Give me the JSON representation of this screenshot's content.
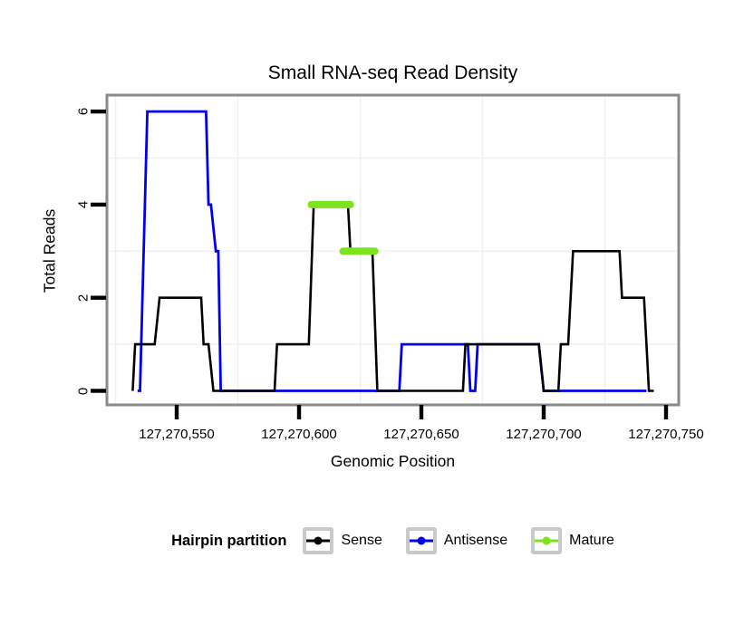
{
  "title": "Small RNA-seq Read Density",
  "x_axis": {
    "label": "Genomic Position",
    "ticks": [
      {
        "value": 127270550,
        "label": "127,270,550"
      },
      {
        "value": 127270600,
        "label": "127,270,600"
      },
      {
        "value": 127270650,
        "label": "127,270,650"
      },
      {
        "value": 127270700,
        "label": "127,270,700"
      },
      {
        "value": 127270750,
        "label": "127,270,750"
      }
    ]
  },
  "y_axis": {
    "label": "Total Reads",
    "ticks": [
      {
        "value": 0,
        "label": "0"
      },
      {
        "value": 2,
        "label": "2"
      },
      {
        "value": 4,
        "label": "4"
      },
      {
        "value": 6,
        "label": "6"
      }
    ]
  },
  "legend": {
    "title": "Hairpin partition",
    "items": [
      {
        "label": "Sense",
        "color": "#000000"
      },
      {
        "label": "Antisense",
        "color": "#0000EE"
      },
      {
        "label": "Mature",
        "color": "#7CE31C"
      }
    ]
  },
  "colors": {
    "panel_border": "#8A8A8A",
    "gridline": "#F0F0F0",
    "tick": "#000000",
    "background": "#FFFFFF"
  },
  "chart_data": {
    "type": "line",
    "title": "Small RNA-seq Read Density",
    "xlabel": "Genomic Position",
    "ylabel": "Total Reads",
    "x_range": [
      127270522,
      127270756
    ],
    "y_range": [
      0,
      6.4
    ],
    "grid": {
      "x_minor": [
        127270525,
        127270575,
        127270625,
        127270675,
        127270725
      ],
      "y_minor": [
        1,
        3,
        5
      ]
    },
    "series": [
      {
        "name": "Antisense",
        "color": "#0000EE",
        "stroke_width": 2.8,
        "points": [
          [
            127270534,
            0
          ],
          [
            127270535,
            0
          ],
          [
            127270538,
            6
          ],
          [
            127270562,
            6
          ],
          [
            127270563,
            4
          ],
          [
            127270564,
            4
          ],
          [
            127270566,
            3
          ],
          [
            127270567,
            3
          ],
          [
            127270568,
            0
          ],
          [
            127270641,
            0
          ],
          [
            127270642,
            1
          ],
          [
            127270669,
            1
          ],
          [
            127270670,
            0
          ],
          [
            127270672,
            0
          ],
          [
            127270673,
            1
          ],
          [
            127270698,
            1
          ],
          [
            127270700,
            0
          ],
          [
            127270742,
            0
          ]
        ]
      },
      {
        "name": "Sense",
        "color": "#000000",
        "stroke_width": 2.6,
        "points": [
          [
            127270532,
            0
          ],
          [
            127270533,
            1
          ],
          [
            127270541,
            1
          ],
          [
            127270543,
            2
          ],
          [
            127270560,
            2
          ],
          [
            127270561,
            1
          ],
          [
            127270563,
            1
          ],
          [
            127270565,
            0
          ],
          [
            127270590,
            0
          ],
          [
            127270591,
            1
          ],
          [
            127270604,
            1
          ],
          [
            127270606,
            4
          ],
          [
            127270620,
            4
          ],
          [
            127270621,
            3
          ],
          [
            127270630,
            3
          ],
          [
            127270632,
            0
          ],
          [
            127270667,
            0
          ],
          [
            127270668,
            1
          ],
          [
            127270698,
            1
          ],
          [
            127270700,
            0
          ],
          [
            127270706,
            0
          ],
          [
            127270707,
            1
          ],
          [
            127270710,
            1
          ],
          [
            127270712,
            3
          ],
          [
            127270731,
            3
          ],
          [
            127270732,
            2
          ],
          [
            127270741,
            2
          ],
          [
            127270743,
            0
          ],
          [
            127270745,
            0
          ]
        ]
      },
      {
        "name": "Mature",
        "color": "#7CE31C",
        "stroke_width": 8,
        "segments": [
          {
            "y": 4,
            "x1": 127270605,
            "x2": 127270621
          },
          {
            "y": 3,
            "x1": 127270618,
            "x2": 127270631
          }
        ]
      }
    ]
  }
}
